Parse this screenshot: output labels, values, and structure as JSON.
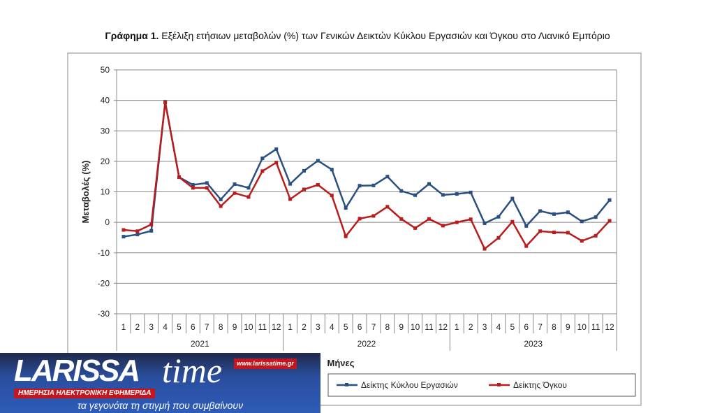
{
  "chart_data": {
    "type": "line",
    "title_bold": "Γράφημα 1.",
    "title": "Εξέλιξη ετήσιων μεταβολών (%) των Γενικών Δεικτών Κύκλου Εργασιών και Όγκου στο Λιανικό Εμπόριο",
    "xlabel": "Μήνες",
    "ylabel": "Μεταβολές  (%)",
    "ylim": [
      -30,
      50
    ],
    "yticks": [
      50,
      40,
      30,
      20,
      10,
      0,
      -10,
      -20,
      -30
    ],
    "years": [
      "2021",
      "2022",
      "2023"
    ],
    "months": [
      "1",
      "2",
      "3",
      "4",
      "5",
      "6",
      "7",
      "8",
      "9",
      "10",
      "11",
      "12"
    ],
    "grid": true,
    "legend_position": "bottom",
    "series": [
      {
        "name": "Δείκτης Κύκλου Εργασιών",
        "color": "#2a5082",
        "values": [
          -4.7,
          -4,
          -2.8,
          39.5,
          14.8,
          12.3,
          12.9,
          7.5,
          12.5,
          11.3,
          21,
          24,
          12.6,
          16.9,
          20.2,
          17.3,
          4.7,
          12,
          12.1,
          15,
          10.3,
          8.9,
          12.6,
          9,
          9.3,
          9.8,
          -0.3,
          1.8,
          7.8,
          -1.2,
          3.7,
          2.7,
          3.3,
          0.3,
          1.7,
          7.3
        ]
      },
      {
        "name": "Δείκτης Όγκου",
        "color": "#b81c1c",
        "values": [
          -2.5,
          -2.9,
          -0.7,
          39.3,
          14.8,
          11.3,
          11.3,
          5.3,
          9.6,
          8.3,
          16.8,
          19.6,
          7.6,
          10.8,
          12.3,
          8.8,
          -4.6,
          1.2,
          2.1,
          5.1,
          1.1,
          -1.9,
          1.1,
          -1.1,
          0,
          1,
          -8.7,
          -5.1,
          0.2,
          -7.8,
          -2.9,
          -3.3,
          -3.4,
          -6.1,
          -4.4,
          0.5
        ]
      }
    ]
  },
  "logo": {
    "brand": "LARISSA",
    "brand2": "time",
    "url": "www.larissatime.gr",
    "subtitle": "ΗΜΕΡΗΣΙΑ ΗΛΕΚΤΡΟΝΙΚΗ ΕΦΗΜΕΡΙΔΑ",
    "tagline": "τα γεγονότα τη στιγμή που συμβαίνουν"
  }
}
